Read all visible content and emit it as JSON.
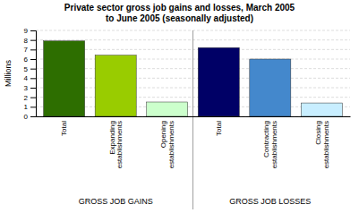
{
  "chart_data": {
    "type": "bar",
    "title": "Private sector gross job gains and losses, March 2005\nto June 2005 (seasonally adjusted)",
    "categories": [
      "Total",
      "Expanding\nestablishments",
      "Opening\nestablishments",
      "Total",
      "Contracting\nestablishments",
      "Closing\nestablishments"
    ],
    "values": [
      7.9,
      6.4,
      1.5,
      7.2,
      6.0,
      1.4
    ],
    "colors": [
      "#2d6e00",
      "#99cc00",
      "#ccffcc",
      "#000066",
      "#4488cc",
      "#c8eeff"
    ],
    "groups": [
      "GROSS JOB GAINS",
      "GROSS JOB GAINS",
      "GROSS JOB GAINS",
      "GROSS JOB LOSSES",
      "GROSS JOB LOSSES",
      "GROSS JOB LOSSES"
    ],
    "ylabel": "Millions",
    "ylim": [
      0,
      9
    ],
    "yticks": [
      0,
      1,
      2,
      3,
      4,
      5,
      6,
      7,
      8,
      9
    ],
    "grid": true
  }
}
